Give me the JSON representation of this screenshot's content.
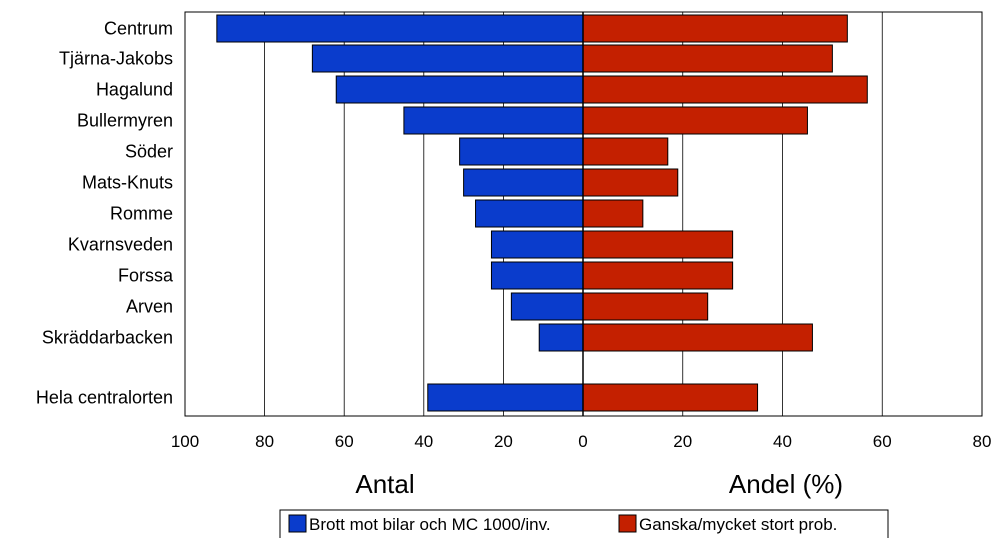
{
  "chart_data": {
    "type": "bar",
    "orientation": "horizontal-diverging",
    "categories": [
      "Centrum",
      "Tjärna-Jakobs",
      "Hagalund",
      "Bullermyren",
      "Söder",
      "Mats-Knuts",
      "Romme",
      "Kvarnsveden",
      "Forssa",
      "Arven",
      "Skräddarbacken",
      "Hela centralorten"
    ],
    "series": [
      {
        "name": "Brott mot bilar och MC 1000/inv.",
        "side": "left",
        "color": "#0a3ccc",
        "values": [
          92,
          68,
          62,
          45,
          31,
          30,
          27,
          23,
          23,
          18,
          11,
          39
        ]
      },
      {
        "name": "Ganska/mycket stort prob.",
        "side": "right",
        "color": "#c42000",
        "values": [
          53,
          50,
          57,
          45,
          17,
          19,
          12,
          30,
          30,
          25,
          46,
          35
        ]
      }
    ],
    "left_axis": {
      "title": "Antal",
      "range": [
        100,
        0
      ],
      "ticks": [
        "100",
        "80",
        "60",
        "40",
        "20",
        "0"
      ]
    },
    "right_axis": {
      "title": "Andel (%)",
      "range": [
        0,
        80
      ],
      "ticks": [
        "0",
        "20",
        "40",
        "60",
        "80"
      ]
    },
    "grid": true,
    "legend_position": "bottom"
  }
}
